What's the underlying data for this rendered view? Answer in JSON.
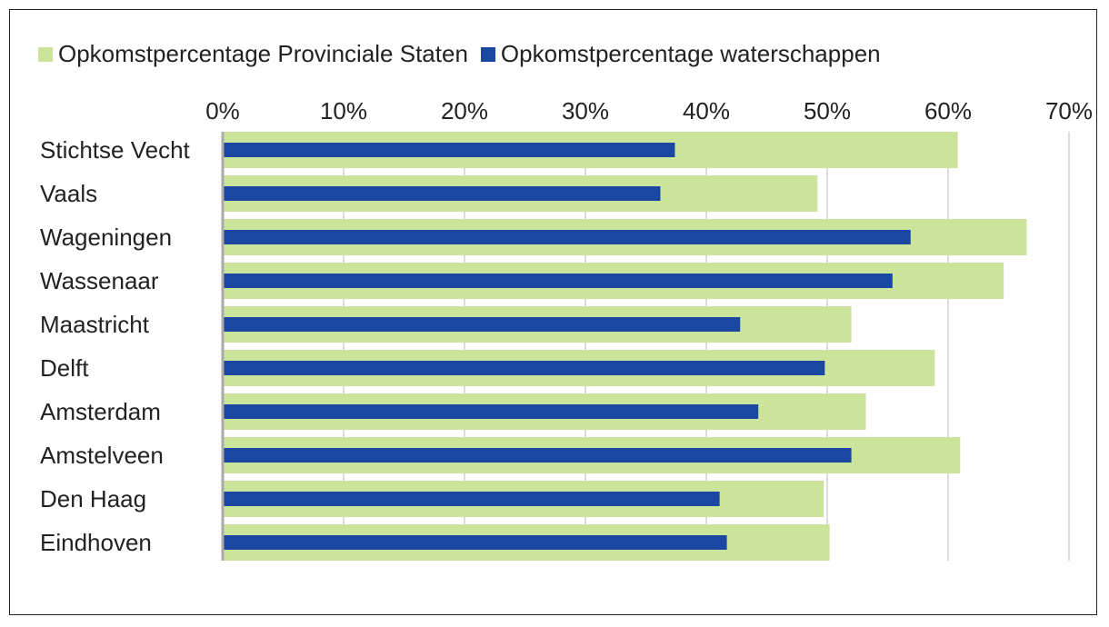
{
  "chart_data": {
    "type": "bar",
    "orientation": "horizontal",
    "categories": [
      "Stichtse Vecht",
      "Vaals",
      "Wageningen",
      "Wassenaar",
      "Maastricht",
      "Delft",
      "Amsterdam",
      "Amstelveen",
      "Den Haag",
      "Eindhoven"
    ],
    "series": [
      {
        "name": "Opkomstpercentage Provinciale Staten",
        "color": "#cce39b",
        "values": [
          60.8,
          49.2,
          66.5,
          64.6,
          52.0,
          58.9,
          53.2,
          61.0,
          49.7,
          50.2
        ]
      },
      {
        "name": "Opkomstpercentage waterschappen",
        "color": "#1a48a0",
        "values": [
          37.4,
          36.2,
          56.9,
          55.4,
          42.8,
          49.8,
          44.3,
          52.0,
          41.1,
          41.7
        ]
      }
    ],
    "xlim": [
      0,
      70
    ],
    "xticks": [
      "0%",
      "10%",
      "20%",
      "30%",
      "40%",
      "50%",
      "60%",
      "70%"
    ],
    "grid": true,
    "legend": "top-left",
    "axis_position": "top"
  }
}
